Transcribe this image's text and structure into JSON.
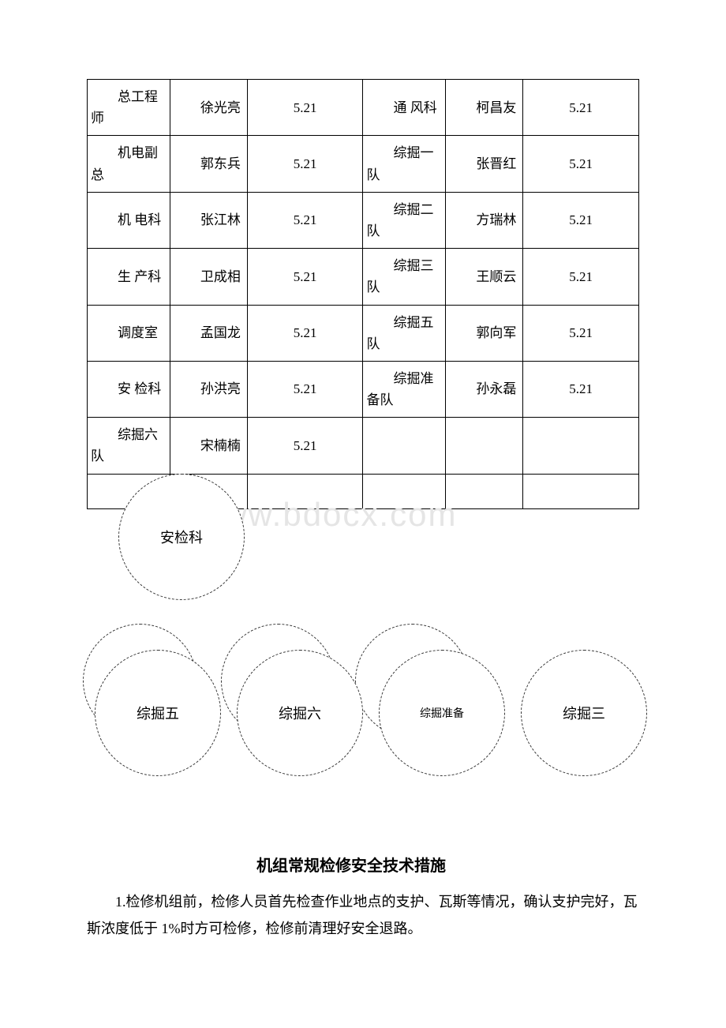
{
  "watermark": "www.bdocx.com",
  "table": {
    "rows": [
      {
        "c1": "总工程师",
        "c2": "徐光亮",
        "c3": "5.21",
        "c4": "通 风科",
        "c5": "柯昌友",
        "c6": "5.21"
      },
      {
        "c1": "机电副总",
        "c2": "郭东兵",
        "c3": "5.21",
        "c4": "综掘一队",
        "c5": "张晋红",
        "c6": "5.21"
      },
      {
        "c1": "机 电科",
        "c2": "张江林",
        "c3": "5.21",
        "c4": "综掘二队",
        "c5": "方瑞林",
        "c6": "5.21"
      },
      {
        "c1": "生 产科",
        "c2": "卫成相",
        "c3": "5.21",
        "c4": "综掘三队",
        "c5": "王顺云",
        "c6": "5.21"
      },
      {
        "c1": "调度室",
        "c2": "孟国龙",
        "c3": "5.21",
        "c4": "综掘五队",
        "c5": "郭向军",
        "c6": "5.21"
      },
      {
        "c1": "安 检科",
        "c2": "孙洪亮",
        "c3": "5.21",
        "c4": "综掘准备队",
        "c5": "孙永磊",
        "c6": "5.21"
      },
      {
        "c1": "综掘六队",
        "c2": "宋楠楠",
        "c3": "5.21",
        "c4": "",
        "c5": "",
        "c6": ""
      },
      {
        "c1": "",
        "c2": "",
        "c3": "",
        "c4": "",
        "c5": "",
        "c6": "",
        "empty": true
      }
    ]
  },
  "circles": {
    "c0": "安检科",
    "c1": "综掘五",
    "c2": "综掘六",
    "c3": "综掘准备",
    "c4": "综掘三"
  },
  "heading": "机组常规检修安全技术措施",
  "body": "1.检修机组前，检修人员首先检查作业地点的支护、瓦斯等情况，确认支护完好，瓦斯浓度低于 1%时方可检修，检修前清理好安全退路。"
}
